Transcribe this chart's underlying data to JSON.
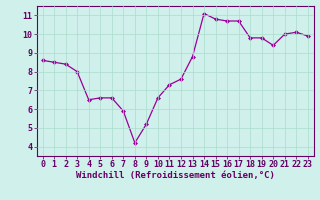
{
  "x": [
    0,
    1,
    2,
    3,
    4,
    5,
    6,
    7,
    8,
    9,
    10,
    11,
    12,
    13,
    14,
    15,
    16,
    17,
    18,
    19,
    20,
    21,
    22,
    23
  ],
  "y": [
    8.6,
    8.5,
    8.4,
    8.0,
    6.5,
    6.6,
    6.6,
    5.9,
    4.2,
    5.2,
    6.6,
    7.3,
    7.6,
    8.8,
    11.1,
    10.8,
    10.7,
    10.7,
    9.8,
    9.8,
    9.4,
    10.0,
    10.1,
    9.9
  ],
  "line_color": "#990099",
  "marker": "D",
  "markersize": 2.0,
  "linewidth": 0.9,
  "bg_color": "#cff0eb",
  "grid_color": "#aaddcc",
  "xlabel": "Windchill (Refroidissement éolien,°C)",
  "xlabel_fontsize": 6.5,
  "tick_fontsize": 6.0,
  "ylim": [
    3.5,
    11.5
  ],
  "yticks": [
    4,
    5,
    6,
    7,
    8,
    9,
    10,
    11
  ],
  "xlim": [
    -0.5,
    23.5
  ],
  "xticks": [
    0,
    1,
    2,
    3,
    4,
    5,
    6,
    7,
    8,
    9,
    10,
    11,
    12,
    13,
    14,
    15,
    16,
    17,
    18,
    19,
    20,
    21,
    22,
    23
  ],
  "spine_color": "#660066",
  "text_color": "#660066"
}
